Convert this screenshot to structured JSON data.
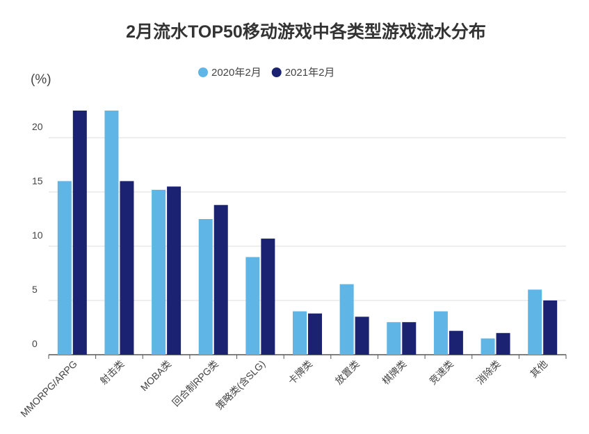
{
  "chart_data": {
    "type": "bar",
    "title": "2月流水TOP50移动游戏中各类型游戏流水分布",
    "y_label": "(%)",
    "categories": [
      "MMORPG/ARPG",
      "射击类",
      "MOBA类",
      "回合制RPG类",
      "策略类(含SLG)",
      "卡牌类",
      "放置类",
      "棋牌类",
      "竞速类",
      "消除类",
      "其他"
    ],
    "series": [
      {
        "name": "2020年2月",
        "color": "#5fb5e5",
        "values": [
          16.0,
          22.5,
          15.2,
          12.5,
          9.0,
          4.0,
          6.5,
          3.0,
          4.0,
          1.5,
          6.0
        ]
      },
      {
        "name": "2021年2月",
        "color": "#1a2271",
        "values": [
          22.5,
          16.0,
          15.5,
          13.8,
          10.7,
          3.8,
          3.5,
          3.0,
          2.2,
          2.0,
          5.0
        ]
      }
    ],
    "ylim": [
      0,
      25
    ],
    "yticks": [
      0,
      5,
      10,
      15,
      20
    ],
    "grid": true,
    "legend": "top"
  }
}
